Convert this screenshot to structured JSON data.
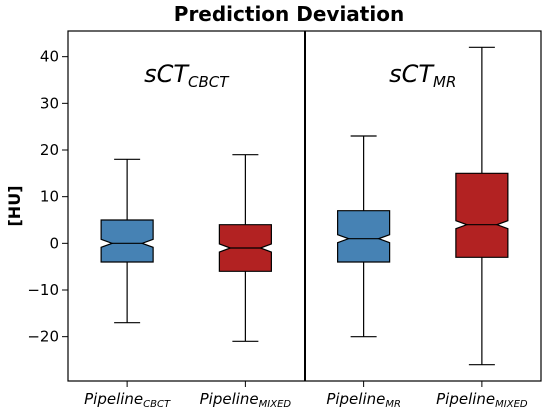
{
  "chart_data": {
    "type": "box",
    "title": "Prediction Deviation",
    "ylabel": "[HU]",
    "ylim": [
      -29.5,
      45.5
    ],
    "yticks": [
      -20,
      -10,
      0,
      10,
      20,
      30,
      40
    ],
    "ytick_labels": [
      "−20",
      "−10",
      "0",
      "10",
      "20",
      "30",
      "40"
    ],
    "panels": [
      {
        "base": "sCT",
        "sub": "CBCT"
      },
      {
        "base": "sCT",
        "sub": "MR"
      }
    ],
    "categories": [
      {
        "base": "Pipeline",
        "sub": "CBCT"
      },
      {
        "base": "Pipeline",
        "sub": "MIXED"
      },
      {
        "base": "Pipeline",
        "sub": "MR"
      },
      {
        "base": "Pipeline",
        "sub": "MIXED"
      }
    ],
    "boxes": [
      {
        "whisker_low": -17,
        "q1": -4,
        "median": 0,
        "q3": 5,
        "whisker_high": 18,
        "color": "#4682b4"
      },
      {
        "whisker_low": -21,
        "q1": -6,
        "median": -1,
        "q3": 4,
        "whisker_high": 19,
        "color": "#b22222"
      },
      {
        "whisker_low": -20,
        "q1": -4,
        "median": 1,
        "q3": 7,
        "whisker_high": 23,
        "color": "#4682b4"
      },
      {
        "whisker_low": -26,
        "q1": -3,
        "median": 4,
        "q3": 15,
        "whisker_high": 42,
        "color": "#b22222"
      }
    ],
    "notched": true,
    "grid": false,
    "legend": "none"
  }
}
